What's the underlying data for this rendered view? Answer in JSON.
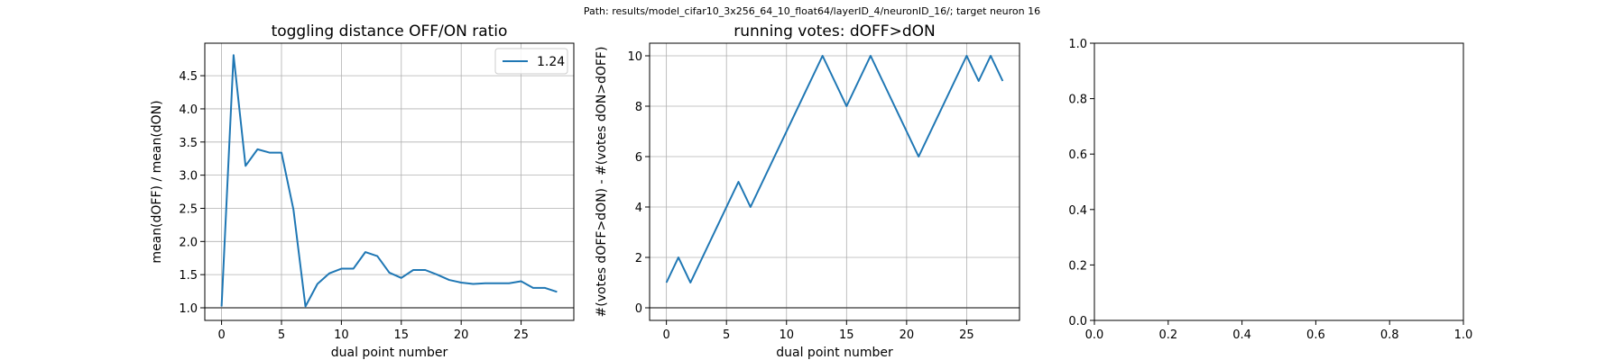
{
  "suptitle": "Path: results/model_cifar10_3x256_64_10_float64/layerID_4/neuronID_16/; target neuron 16",
  "chart_data": [
    {
      "type": "line",
      "title": "toggling distance OFF/ON ratio",
      "xlabel": "dual point number",
      "ylabel": "mean(dOFF) / mean(dON)",
      "xlim": [
        -1.4,
        29.4
      ],
      "ylim": [
        0.81,
        4.99
      ],
      "xticks": [
        0,
        5,
        10,
        15,
        20,
        25
      ],
      "yticks": [
        1.0,
        1.5,
        2.0,
        2.5,
        3.0,
        3.5,
        4.0,
        4.5
      ],
      "ytick_labels": [
        "1.0",
        "1.5",
        "2.0",
        "2.5",
        "3.0",
        "3.5",
        "4.0",
        "4.5"
      ],
      "grid": true,
      "legend": "top-right",
      "hline": 1.0,
      "color": "#1f77b4",
      "series": [
        {
          "name": "1.24",
          "x": [
            0,
            1,
            2,
            3,
            4,
            5,
            6,
            7,
            8,
            9,
            10,
            11,
            12,
            13,
            14,
            15,
            16,
            17,
            18,
            19,
            20,
            21,
            22,
            23,
            24,
            25,
            26,
            27,
            28
          ],
          "y": [
            1.02,
            4.81,
            3.14,
            3.39,
            3.34,
            3.34,
            2.48,
            1.02,
            1.36,
            1.52,
            1.59,
            1.59,
            1.84,
            1.78,
            1.53,
            1.45,
            1.57,
            1.57,
            1.5,
            1.42,
            1.38,
            1.36,
            1.37,
            1.37,
            1.37,
            1.4,
            1.3,
            1.3,
            1.24
          ]
        }
      ]
    },
    {
      "type": "line",
      "title": "running votes: dOFF>dON",
      "xlabel": "dual point number",
      "ylabel": "#(votes dOFF>dON) - #(votes dON>dOFF)",
      "xlim": [
        -1.4,
        29.4
      ],
      "ylim": [
        -0.5,
        10.5
      ],
      "xticks": [
        0,
        5,
        10,
        15,
        20,
        25
      ],
      "yticks": [
        0,
        2,
        4,
        6,
        8,
        10
      ],
      "ytick_labels": [
        "0",
        "2",
        "4",
        "6",
        "8",
        "10"
      ],
      "grid": true,
      "hline": 0,
      "color": "#1f77b4",
      "series": [
        {
          "x": [
            0,
            1,
            2,
            3,
            4,
            5,
            6,
            7,
            8,
            9,
            10,
            11,
            12,
            13,
            14,
            15,
            16,
            17,
            18,
            19,
            20,
            21,
            22,
            23,
            24,
            25,
            26,
            27,
            28
          ],
          "y": [
            1,
            2,
            1,
            2,
            3,
            4,
            5,
            4,
            5,
            6,
            7,
            8,
            9,
            10,
            9,
            8,
            9,
            10,
            9,
            8,
            7,
            6,
            7,
            8,
            9,
            10,
            9,
            10,
            9
          ]
        }
      ]
    },
    {
      "type": "line",
      "title": "",
      "xlabel": "",
      "ylabel": "",
      "xlim": [
        0,
        1
      ],
      "ylim": [
        0,
        1
      ],
      "xticks": [
        0.0,
        0.2,
        0.4,
        0.6,
        0.8,
        1.0
      ],
      "yticks": [
        0.0,
        0.2,
        0.4,
        0.6,
        0.8,
        1.0
      ],
      "ytick_labels": [
        "0.0",
        "0.2",
        "0.4",
        "0.6",
        "0.8",
        "1.0"
      ],
      "grid": false,
      "series": []
    }
  ]
}
